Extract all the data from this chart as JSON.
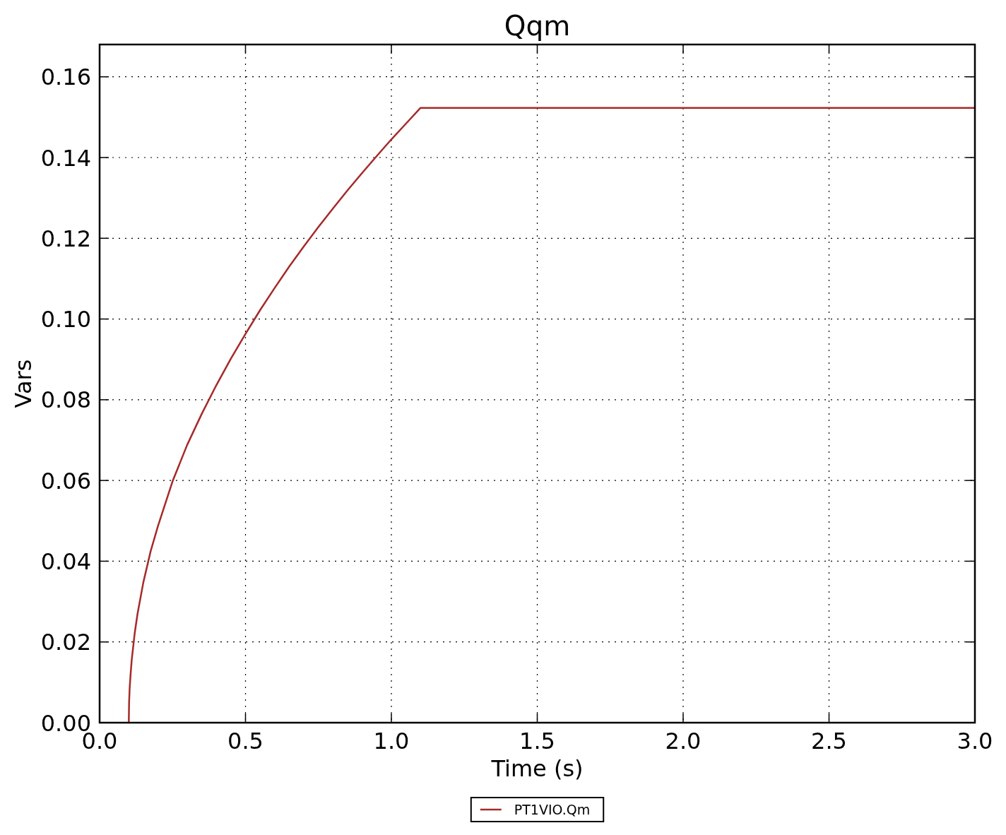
{
  "chart_data": {
    "type": "line",
    "title": "Qqm",
    "xlabel": "Time (s)",
    "ylabel": "Vars",
    "x": [
      0.1,
      0.101,
      0.103,
      0.106,
      0.11,
      0.12,
      0.13,
      0.15,
      0.175,
      0.2,
      0.25,
      0.3,
      0.35,
      0.4,
      0.45,
      0.5,
      0.55,
      0.6,
      0.65,
      0.7,
      0.75,
      0.8,
      0.85,
      0.9,
      0.95,
      1.0,
      1.05,
      1.1,
      3.0
    ],
    "series": [
      {
        "name": "PT1VIO.Qm",
        "color": "#a52a2a",
        "values": [
          0,
          0.005,
          0.0085,
          0.0118,
          0.0155,
          0.022,
          0.027,
          0.0348,
          0.0425,
          0.0487,
          0.0598,
          0.0688,
          0.0765,
          0.0836,
          0.0902,
          0.0963,
          0.1022,
          0.1077,
          0.113,
          0.118,
          0.1228,
          0.1274,
          0.1319,
          0.1362,
          0.1404,
          0.1445,
          0.1484,
          0.1523,
          0.1523
        ]
      }
    ],
    "xlim": [
      0,
      3
    ],
    "xticks": [
      {
        "value": 0,
        "label": "0.0"
      },
      {
        "value": 0.5,
        "label": "0.5"
      },
      {
        "value": 1,
        "label": "1.0"
      },
      {
        "value": 1.5,
        "label": "1.5"
      },
      {
        "value": 2,
        "label": "2.0"
      },
      {
        "value": 2.5,
        "label": "2.5"
      },
      {
        "value": 3,
        "label": "3.0"
      }
    ],
    "ylim": [
      0,
      0.168
    ],
    "yticks": [
      {
        "value": 0,
        "label": "0.00"
      },
      0.02,
      0.04,
      0.06,
      0.08,
      {
        "value": 0.1,
        "label": "0.10"
      },
      0.12,
      0.14,
      0.16
    ],
    "grid": true,
    "legend": "bottom",
    "line_style": "solid",
    "marker": "none"
  }
}
